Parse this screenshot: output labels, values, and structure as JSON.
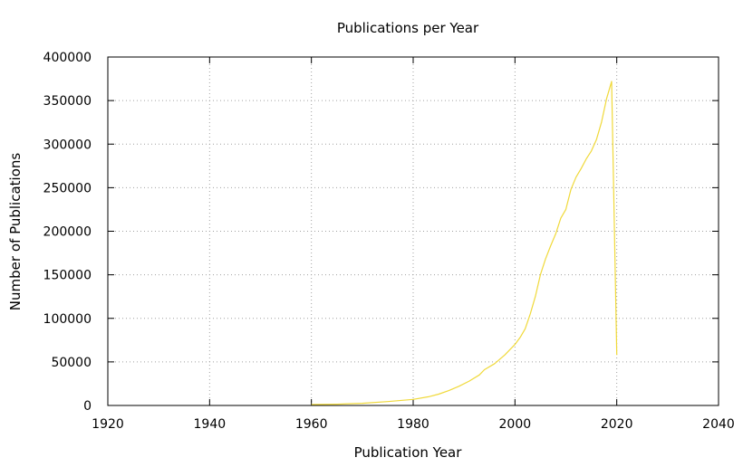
{
  "chart_data": {
    "type": "line",
    "title": "Publications per Year",
    "xlabel": "Publication Year",
    "ylabel": "Number of Publications",
    "xlim": [
      1920,
      2040
    ],
    "ylim": [
      0,
      400000
    ],
    "xticks": [
      1920,
      1940,
      1960,
      1980,
      2000,
      2020,
      2040
    ],
    "yticks": [
      0,
      50000,
      100000,
      150000,
      200000,
      250000,
      300000,
      350000,
      400000
    ],
    "grid": true,
    "line_color": "#f0d93a",
    "series": [
      {
        "x": [
          1960,
          1965,
          1970,
          1975,
          1980,
          1983,
          1985,
          1987,
          1989,
          1991,
          1993,
          1994,
          1996,
          1998,
          2000,
          2001,
          2002,
          2003,
          2004,
          2005,
          2006,
          2007,
          2008,
          2009,
          2010,
          2011,
          2012,
          2013,
          2014,
          2015,
          2016,
          2017,
          2018,
          2019,
          2020
        ],
        "y": [
          1000,
          1500,
          2500,
          4500,
          7000,
          10000,
          13000,
          17000,
          22000,
          28000,
          35000,
          41000,
          48000,
          58000,
          70000,
          78000,
          88000,
          105000,
          125000,
          150000,
          168000,
          183000,
          197000,
          215000,
          225000,
          248000,
          262000,
          272000,
          283000,
          292000,
          305000,
          325000,
          352000,
          372000,
          58000
        ]
      }
    ]
  }
}
